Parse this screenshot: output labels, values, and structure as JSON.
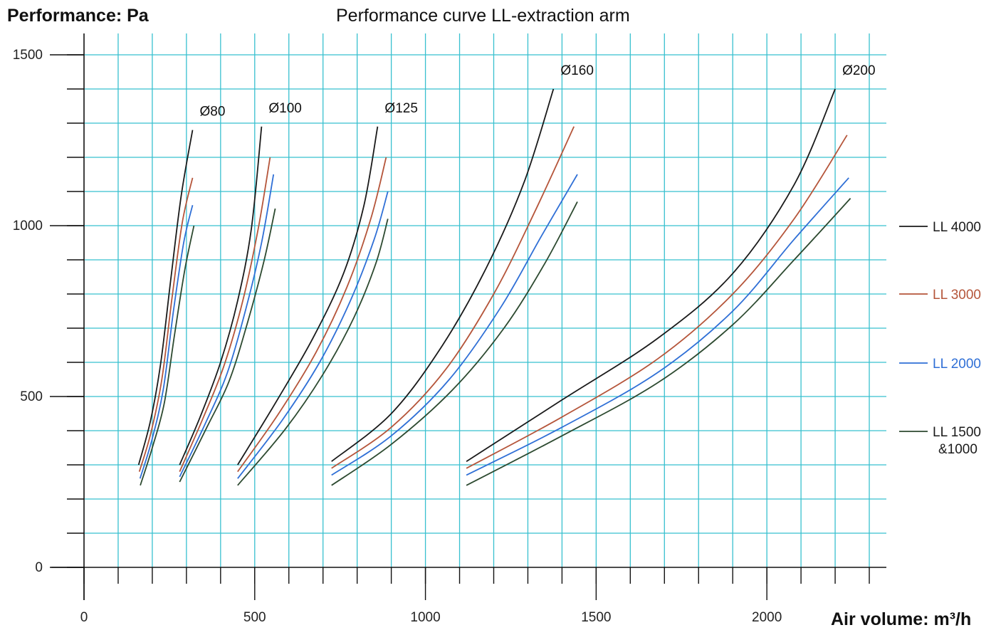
{
  "chart_data": {
    "type": "line",
    "title": "Performance curve LL-extraction arm",
    "ylabel": "Performance: Pa",
    "xlabel": "Air volume: m³/h",
    "xlim": [
      0,
      2350
    ],
    "ylim": [
      0,
      1500
    ],
    "x_ticks": [
      0,
      500,
      1000,
      1500,
      2000
    ],
    "y_ticks": [
      0,
      500,
      1000,
      1500
    ],
    "x_minor_step": 100,
    "y_minor_step": 100,
    "grid": true,
    "grid_color": "#38c0cf",
    "legend_position": "right",
    "legend": [
      {
        "label": "LL 4000",
        "color": "#1a1a1a"
      },
      {
        "label": "LL 3000",
        "color": "#b5553a"
      },
      {
        "label": "LL 2000",
        "color": "#2f6fd6"
      },
      {
        "label": "LL 1500 &1000",
        "color": "#2d4a30"
      }
    ],
    "groups": [
      {
        "diameter": "Ø80",
        "curves": [
          {
            "model": "LL 4000",
            "points": [
              [
                160,
                300
              ],
              [
                195,
                430
              ],
              [
                225,
                600
              ],
              [
                255,
                850
              ],
              [
                285,
                1090
              ],
              [
                318,
                1280
              ]
            ]
          },
          {
            "model": "LL 3000",
            "points": [
              [
                162,
                280
              ],
              [
                195,
                390
              ],
              [
                228,
                550
              ],
              [
                258,
                790
              ],
              [
                288,
                1010
              ],
              [
                318,
                1140
              ]
            ]
          },
          {
            "model": "LL 2000",
            "points": [
              [
                164,
                260
              ],
              [
                198,
                370
              ],
              [
                232,
                520
              ],
              [
                262,
                750
              ],
              [
                292,
                950
              ],
              [
                318,
                1060
              ]
            ]
          },
          {
            "model": "LL 1500 &1000",
            "points": [
              [
                165,
                240
              ],
              [
                200,
                350
              ],
              [
                235,
                480
              ],
              [
                265,
                680
              ],
              [
                295,
                870
              ],
              [
                322,
                1000
              ]
            ]
          }
        ]
      },
      {
        "diameter": "Ø100",
        "curves": [
          {
            "model": "LL 4000",
            "points": [
              [
                280,
                300
              ],
              [
                340,
                440
              ],
              [
                400,
                600
              ],
              [
                450,
                780
              ],
              [
                490,
                990
              ],
              [
                520,
                1290
              ]
            ]
          },
          {
            "model": "LL 3000",
            "points": [
              [
                280,
                280
              ],
              [
                350,
                440
              ],
              [
                410,
                590
              ],
              [
                465,
                780
              ],
              [
                510,
                990
              ],
              [
                545,
                1200
              ]
            ]
          },
          {
            "model": "LL 2000",
            "points": [
              [
                280,
                265
              ],
              [
                355,
                420
              ],
              [
                420,
                570
              ],
              [
                475,
                760
              ],
              [
                520,
                950
              ],
              [
                555,
                1150
              ]
            ]
          },
          {
            "model": "LL 1500 &1000",
            "points": [
              [
                280,
                250
              ],
              [
                360,
                410
              ],
              [
                425,
                545
              ],
              [
                480,
                720
              ],
              [
                528,
                900
              ],
              [
                560,
                1050
              ]
            ]
          }
        ]
      },
      {
        "diameter": "Ø125",
        "curves": [
          {
            "model": "LL 4000",
            "points": [
              [
                450,
                300
              ],
              [
                560,
                480
              ],
              [
                670,
                670
              ],
              [
                760,
                860
              ],
              [
                820,
                1060
              ],
              [
                860,
                1290
              ]
            ]
          },
          {
            "model": "LL 3000",
            "points": [
              [
                450,
                280
              ],
              [
                570,
                450
              ],
              [
                680,
                630
              ],
              [
                770,
                820
              ],
              [
                840,
                1020
              ],
              [
                885,
                1200
              ]
            ]
          },
          {
            "model": "LL 2000",
            "points": [
              [
                450,
                260
              ],
              [
                580,
                430
              ],
              [
                690,
                600
              ],
              [
                780,
                780
              ],
              [
                850,
                960
              ],
              [
                890,
                1100
              ]
            ]
          },
          {
            "model": "LL 1500 &1000",
            "points": [
              [
                450,
                240
              ],
              [
                590,
                405
              ],
              [
                700,
                565
              ],
              [
                790,
                730
              ],
              [
                855,
                890
              ],
              [
                890,
                1020
              ]
            ]
          }
        ]
      },
      {
        "diameter": "Ø160",
        "curves": [
          {
            "model": "LL 4000",
            "points": [
              [
                725,
                310
              ],
              [
                900,
                450
              ],
              [
                1050,
                650
              ],
              [
                1180,
                880
              ],
              [
                1290,
                1130
              ],
              [
                1375,
                1400
              ]
            ]
          },
          {
            "model": "LL 3000",
            "points": [
              [
                725,
                290
              ],
              [
                900,
                410
              ],
              [
                1060,
                580
              ],
              [
                1200,
                800
              ],
              [
                1320,
                1040
              ],
              [
                1435,
                1290
              ]
            ]
          },
          {
            "model": "LL 2000",
            "points": [
              [
                725,
                270
              ],
              [
                900,
                385
              ],
              [
                1070,
                550
              ],
              [
                1220,
                760
              ],
              [
                1340,
                970
              ],
              [
                1445,
                1150
              ]
            ]
          },
          {
            "model": "LL 1500 &1000",
            "points": [
              [
                725,
                240
              ],
              [
                900,
                360
              ],
              [
                1080,
                520
              ],
              [
                1230,
                700
              ],
              [
                1350,
                890
              ],
              [
                1445,
                1070
              ]
            ]
          }
        ]
      },
      {
        "diameter": "Ø200",
        "curves": [
          {
            "model": "LL 4000",
            "points": [
              [
                1120,
                310
              ],
              [
                1400,
                490
              ],
              [
                1680,
                670
              ],
              [
                1900,
                860
              ],
              [
                2080,
                1120
              ],
              [
                2200,
                1400
              ]
            ]
          },
          {
            "model": "LL 3000",
            "points": [
              [
                1120,
                290
              ],
              [
                1400,
                440
              ],
              [
                1680,
                610
              ],
              [
                1900,
                800
              ],
              [
                2080,
                1020
              ],
              [
                2235,
                1265
              ]
            ]
          },
          {
            "model": "LL 2000",
            "points": [
              [
                1120,
                270
              ],
              [
                1400,
                410
              ],
              [
                1680,
                570
              ],
              [
                1900,
                750
              ],
              [
                2080,
                960
              ],
              [
                2240,
                1140
              ]
            ]
          },
          {
            "model": "LL 1500 &1000",
            "points": [
              [
                1120,
                240
              ],
              [
                1400,
                385
              ],
              [
                1680,
                540
              ],
              [
                1900,
                710
              ],
              [
                2080,
                900
              ],
              [
                2245,
                1080
              ]
            ]
          }
        ]
      }
    ]
  }
}
